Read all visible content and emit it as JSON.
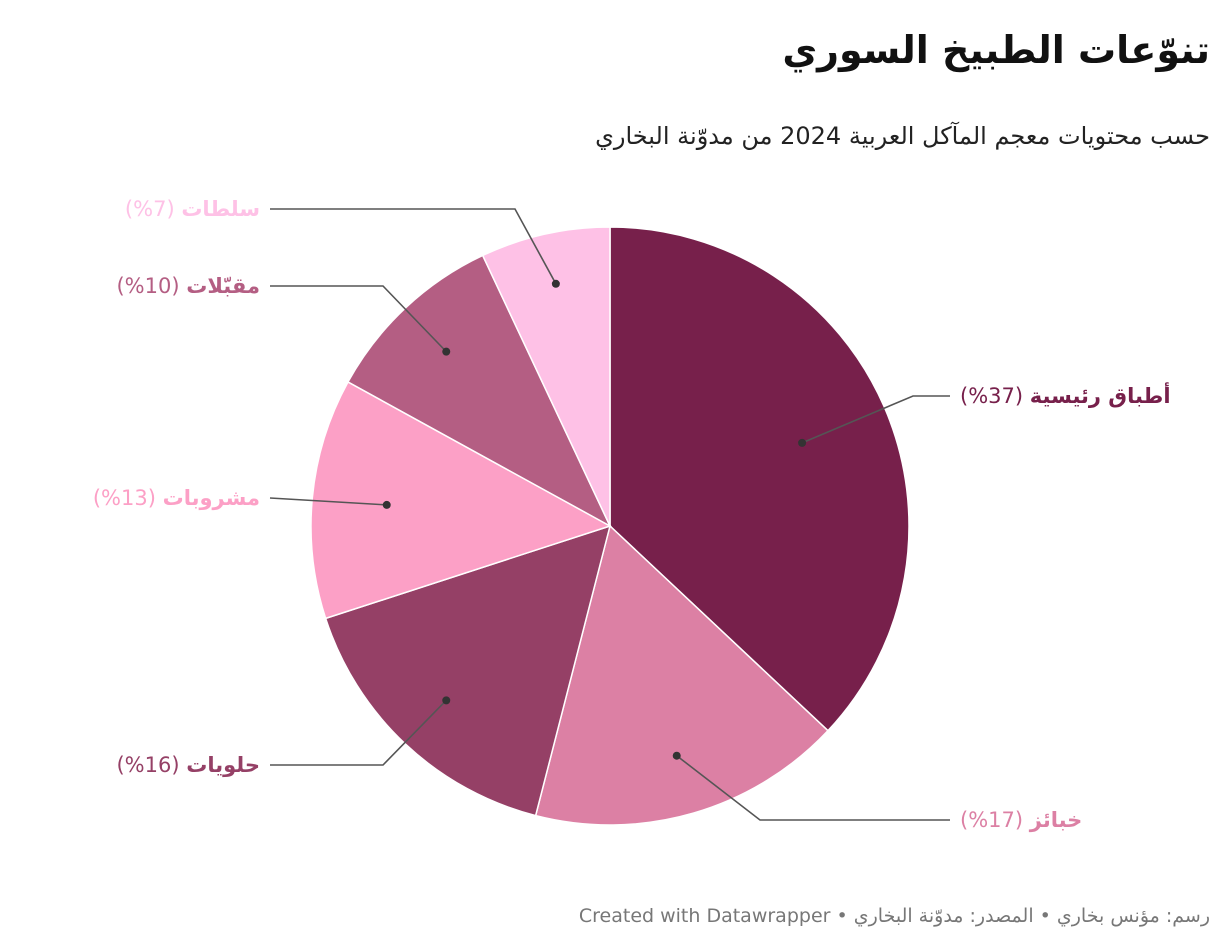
{
  "header": {
    "title": "تنوّعات الطبيخ السوري",
    "subtitle": "حسب محتويات معجم المآكل العربية 2024 من مدوّنة البخاري"
  },
  "footer": {
    "text": "رسم: مؤنس بخاري • المصدر: مدوّنة البخاري • Created with Datawrapper"
  },
  "chart_data": {
    "type": "pie",
    "title": "تنوّعات الطبيخ السوري",
    "subtitle": "حسب محتويات معجم المآكل العربية 2024 من مدوّنة البخاري",
    "slices": [
      {
        "name": "أطباق رئيسية",
        "value": 37,
        "display": "(37%)",
        "color": "#77204b"
      },
      {
        "name": "خبائز",
        "value": 17,
        "display": "(17%)",
        "color": "#dc80a4"
      },
      {
        "name": "حلويات",
        "value": 16,
        "display": "(16%)",
        "color": "#954066"
      },
      {
        "name": "مشروبات",
        "value": 13,
        "display": "(13%)",
        "color": "#fca0c6"
      },
      {
        "name": "مقبّلات",
        "value": 10,
        "display": "(10%)",
        "color": "#b45e83"
      },
      {
        "name": "سلطات",
        "value": 7,
        "display": "(7%)",
        "color": "#fec1e6"
      }
    ]
  }
}
